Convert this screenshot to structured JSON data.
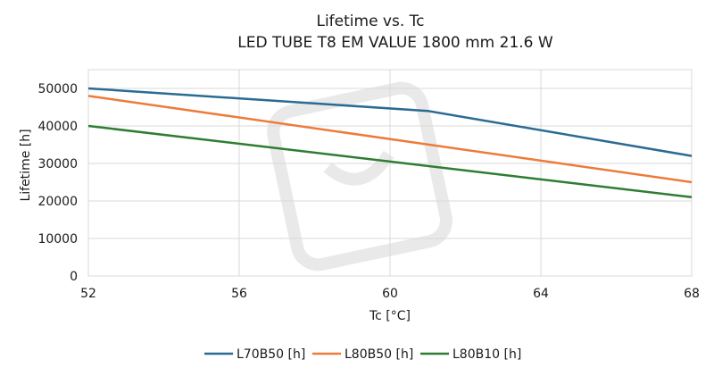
{
  "chart_data": {
    "type": "line",
    "title": "Lifetime vs. Tc",
    "subtitle": "LED TUBE T8 EM VALUE 1800 mm 21.6 W",
    "xlabel": "Tc [°C]",
    "ylabel": "Lifetime [h]",
    "xlim": [
      52,
      68
    ],
    "ylim": [
      0,
      55000
    ],
    "xticks": [
      52,
      56,
      60,
      64,
      68
    ],
    "yticks": [
      0,
      10000,
      20000,
      30000,
      40000,
      50000
    ],
    "grid": true,
    "legend_position": "bottom",
    "series": [
      {
        "name": "L70B50 [h]",
        "color": "#2a6a94",
        "x": [
          52,
          61,
          68
        ],
        "y": [
          50000,
          44000,
          32000
        ]
      },
      {
        "name": "L80B50 [h]",
        "color": "#ee7a3a",
        "x": [
          52,
          68
        ],
        "y": [
          48000,
          25000
        ]
      },
      {
        "name": "L80B10 [h]",
        "color": "#2d7d32",
        "x": [
          52,
          68
        ],
        "y": [
          40000,
          21000
        ]
      }
    ]
  }
}
